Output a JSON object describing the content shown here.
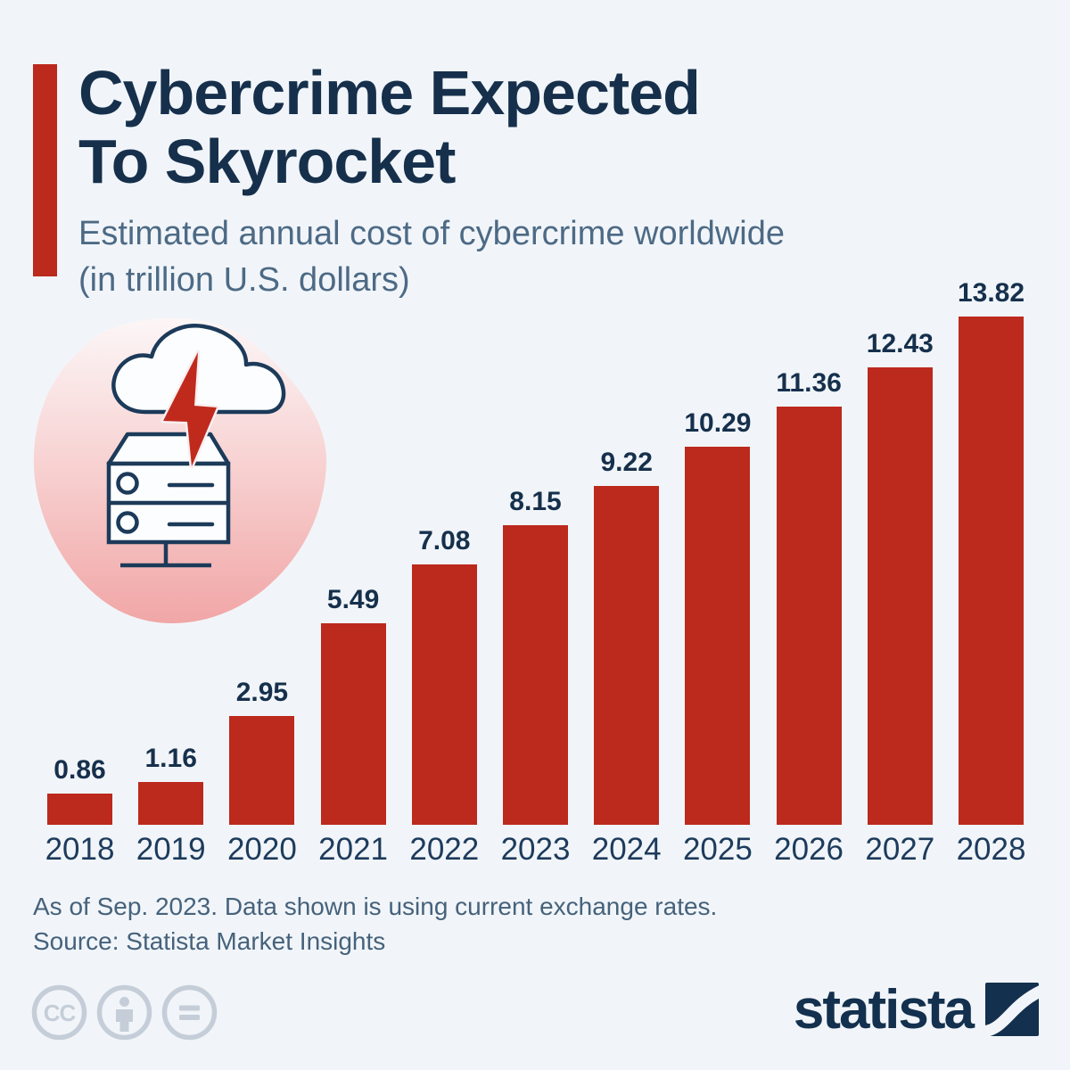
{
  "colors": {
    "background": "#f1f5f9",
    "accent": "#bc291d",
    "bar": "#bc291d",
    "title": "#16304c",
    "subtitle": "#4d6a85",
    "value_label": "#16304c",
    "year_label": "#1d3b5c",
    "footer_text": "#46627b",
    "license_icon": "#c5ced8",
    "logo": "#13304e",
    "icon_stroke": "#1c3a59",
    "icon_blob_top": "#fcf6f7",
    "icon_blob_bottom": "#f1a6a6",
    "bolt_red": "#c02a1d"
  },
  "header": {
    "title_lines": [
      "Cybercrime Expected",
      "To Skyrocket"
    ],
    "subtitle_lines": [
      "Estimated annual cost of cybercrime worldwide",
      "(in trillion U.S. dollars)"
    ]
  },
  "hero_icon": "cloud-lightning-server-icon",
  "chart_data": {
    "type": "bar",
    "title": "Cybercrime Expected To Skyrocket",
    "subtitle": "Estimated annual cost of cybercrime worldwide (in trillion U.S. dollars)",
    "categories": [
      "2018",
      "2019",
      "2020",
      "2021",
      "2022",
      "2023",
      "2024",
      "2025",
      "2026",
      "2027",
      "2028"
    ],
    "values": [
      0.86,
      1.16,
      2.95,
      5.49,
      7.08,
      8.15,
      9.22,
      10.29,
      11.36,
      12.43,
      13.82
    ],
    "unit": "trillion U.S. dollars",
    "bar_color": "#bc291d",
    "value_labels_shown": true,
    "xlabel": "",
    "ylabel": "",
    "ylim": [
      0,
      13.82
    ],
    "grid": false,
    "legend": "none"
  },
  "footer": {
    "note": "As of Sep. 2023. Data shown is using current exchange rates.",
    "source": "Source: Statista Market Insights",
    "license_icons": [
      "cc-license-icon",
      "attribution-icon",
      "no-derivatives-icon"
    ],
    "logo_text": "statista"
  }
}
